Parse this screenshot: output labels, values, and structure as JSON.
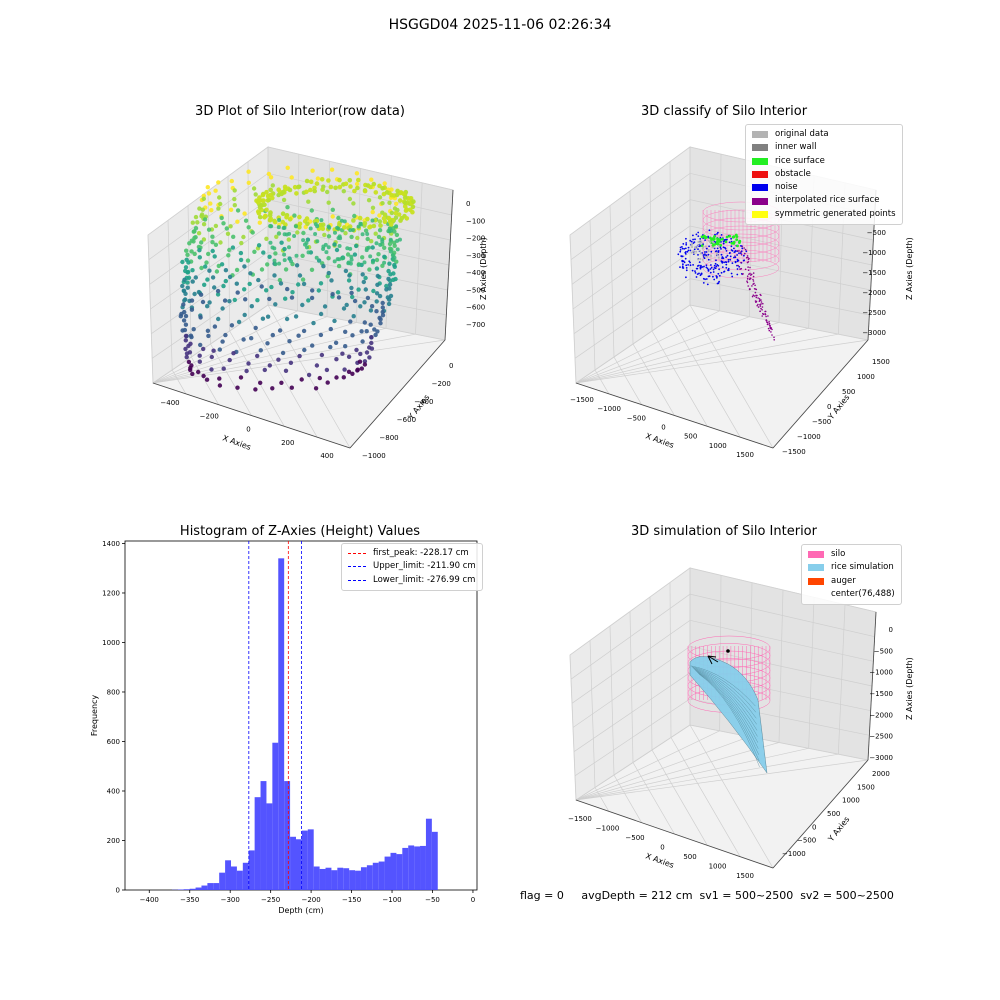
{
  "suptitle": "HSGGD04 2025-11-06 02:26:34",
  "status_line": "flag = 0     avgDepth = 212 cm  sv1 = 500~2500  sv2 = 500~2500",
  "colors": {
    "original_data": "#b3b3b3",
    "inner_wall": "#808080",
    "rice_surface": "#22ee22",
    "obstacle": "#ee1111",
    "noise": "#0000ee",
    "interpolated_rice_surface": "#8b008b",
    "symmetric_generated_points": "#ffff11",
    "silo": "#ff69b4",
    "rice_simulation": "#87ceeb",
    "auger": "#ff4500",
    "histogram_bar": "#4b4bff",
    "first_peak_line": "#ff0000",
    "limit_lines": "#0000ff"
  },
  "chart_data": [
    {
      "type": "scatter",
      "projection": "3d",
      "title": "3D Plot of Silo Interior(row data)",
      "xlabel": "X Axies",
      "ylabel": "Y Axies",
      "zlabel": "Z Axies (Depth)",
      "xticks": [
        "−400",
        "−200",
        "0",
        "200",
        "400"
      ],
      "yticks": [
        "−1000",
        "−800",
        "−600",
        "−400",
        "−200",
        "0"
      ],
      "zticks": [
        "0",
        "−100",
        "−200",
        "−300",
        "−400",
        "−500",
        "−600",
        "−700"
      ],
      "colormap": "viridis",
      "grid": true
    },
    {
      "type": "scatter",
      "projection": "3d",
      "title": "3D classify of Silo Interior",
      "xlabel": "X Axies",
      "ylabel": "Y Axies",
      "zlabel": "Z Axies (Depth)",
      "xticks": [
        "−1500",
        "−1000",
        "−500",
        "0",
        "500",
        "1000",
        "1500"
      ],
      "yticks": [
        "−1500",
        "−1000",
        "−500",
        "0",
        "500",
        "1000",
        "1500"
      ],
      "zticks": [
        "−500",
        "−1000",
        "−1500",
        "−2000",
        "−2500",
        "−3000"
      ],
      "legend": [
        "original data",
        "inner wall",
        "rice surface",
        "obstacle",
        "noise",
        "interpolated rice surface",
        "symmetric generated points"
      ],
      "legend_position": "top-right",
      "grid": true
    },
    {
      "type": "bar",
      "title": "Histogram of Z-Axies (Height) Values",
      "xlabel": "Depth (cm)",
      "ylabel": "Frequency",
      "xlim": [
        -430,
        5
      ],
      "ylim": [
        0,
        1410
      ],
      "xticks": [
        "−400",
        "−350",
        "−300",
        "−250",
        "−200",
        "−150",
        "−100",
        "−50",
        "0"
      ],
      "yticks": [
        "0",
        "200",
        "400",
        "600",
        "800",
        "1000",
        "1200",
        "1400"
      ],
      "bin_width": 7.3,
      "bin_edges_start": -372,
      "values": [
        1,
        2,
        3,
        5,
        10,
        18,
        28,
        28,
        70,
        120,
        95,
        78,
        110,
        160,
        375,
        440,
        350,
        595,
        1340,
        440,
        215,
        205,
        240,
        245,
        95,
        85,
        90,
        80,
        90,
        88,
        80,
        78,
        92,
        100,
        110,
        115,
        135,
        150,
        145,
        170,
        180,
        176,
        178,
        288,
        235
      ],
      "lines": [
        {
          "label": "first_peak: -228.17 cm",
          "x": -228.17,
          "color": "red"
        },
        {
          "label": "Upper_limit: -211.90 cm",
          "x": -211.9,
          "color": "blue"
        },
        {
          "label": "Lower_limit: -276.99 cm",
          "x": -276.99,
          "color": "blue"
        }
      ],
      "legend_position": "top-right",
      "grid": false
    },
    {
      "type": "surface",
      "projection": "3d",
      "title": "3D simulation of Silo Interior",
      "xlabel": "X Axies",
      "ylabel": "Y Axies",
      "zlabel": "Z Axies (Depth)",
      "xticks": [
        "−1500",
        "−1000",
        "−500",
        "0",
        "500",
        "1000",
        "1500"
      ],
      "yticks": [
        "−1000",
        "−500",
        "0",
        "500",
        "1000",
        "1500",
        "2000"
      ],
      "zticks": [
        "0",
        "−500",
        "−1000",
        "−1500",
        "−2000",
        "−2500",
        "−3000"
      ],
      "legend": [
        "silo",
        "rice simulation",
        "auger",
        "center(76,488)"
      ],
      "legend_position": "top-right",
      "grid": true
    }
  ]
}
